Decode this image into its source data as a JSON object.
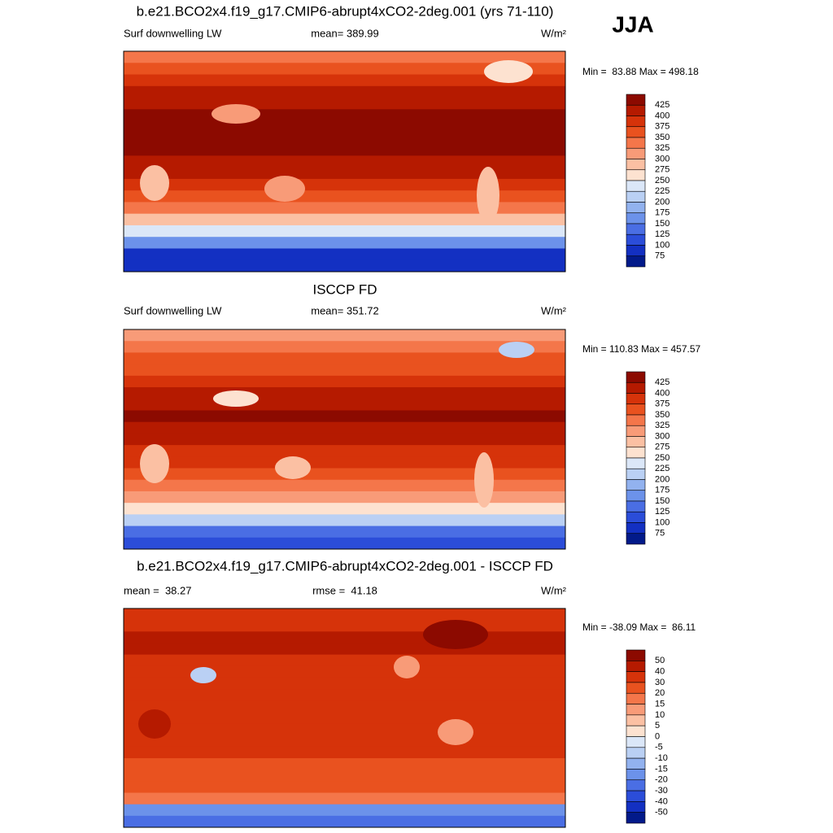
{
  "header": {
    "season": "JJA"
  },
  "palette": [
    "#8c0a00",
    "#b51a00",
    "#d6330a",
    "#e9521f",
    "#f4764a",
    "#f89b78",
    "#fbc0a3",
    "#fde2d0",
    "#dbe7f8",
    "#bad0f4",
    "#92b2ef",
    "#6c92ea",
    "#4a6ee4",
    "#2b4dd9",
    "#1330c2",
    "#021a8a"
  ],
  "panels": [
    {
      "title": "b.e21.BCO2x4.f19_g17.CMIP6-abrupt4xCO2-2deg.001 (yrs 71-110)",
      "left": "Surf downwelling LW",
      "center": "mean= 389.99",
      "units": "W/m²",
      "minmax": "Min =  83.88 Max = 498.18",
      "colorbar": {
        "labels": [
          425,
          400,
          375,
          350,
          325,
          300,
          275,
          250,
          225,
          200,
          175,
          150,
          125,
          100,
          75
        ]
      }
    },
    {
      "title": "ISCCP FD",
      "left": "Surf downwelling LW",
      "center": "mean= 351.72",
      "units": "W/m²",
      "minmax": "Min = 110.83 Max = 457.57",
      "colorbar": {
        "labels": [
          425,
          400,
          375,
          350,
          325,
          300,
          275,
          250,
          225,
          200,
          175,
          150,
          125,
          100,
          75
        ]
      }
    },
    {
      "title": "b.e21.BCO2x4.f19_g17.CMIP6-abrupt4xCO2-2deg.001 - ISCCP FD",
      "left": "mean =  38.27",
      "center": "rmse =  41.18",
      "units": "W/m²",
      "minmax": "Min = -38.09 Max =  86.11",
      "colorbar": {
        "labels": [
          50,
          40,
          30,
          20,
          15,
          10,
          5,
          0,
          -5,
          -10,
          -15,
          -20,
          -30,
          -40,
          -50
        ]
      }
    }
  ]
}
